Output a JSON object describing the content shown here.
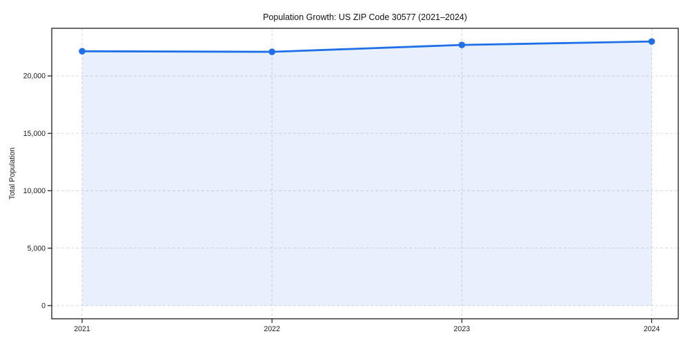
{
  "chart_data": {
    "type": "line",
    "title": "Population Growth: US ZIP Code 30577 (2021–2024)",
    "xlabel": "",
    "ylabel": "Total Population",
    "x": [
      2021,
      2022,
      2023,
      2024
    ],
    "xtick_labels": [
      "2021",
      "2022",
      "2023",
      "2024"
    ],
    "series": [
      {
        "name": "Total Population",
        "values": [
          22150,
          22100,
          22700,
          23000
        ]
      }
    ],
    "yticks": [
      0,
      5000,
      10000,
      15000,
      20000
    ],
    "ytick_labels": [
      "0",
      "5,000",
      "10,000",
      "15,000",
      "20,000"
    ],
    "ylim": [
      -1150,
      24150
    ],
    "xlim": [
      2020.84,
      2024.14
    ],
    "grid": true,
    "grid_style": "dashed",
    "legend": "none",
    "line_color": "#1f6fe8",
    "marker": "circle",
    "marker_color": "#1f6fe8",
    "area_fill": true,
    "area_fill_color": "#1f6fe8",
    "area_fill_opacity": 0.1,
    "background_color": "#ffffff"
  }
}
